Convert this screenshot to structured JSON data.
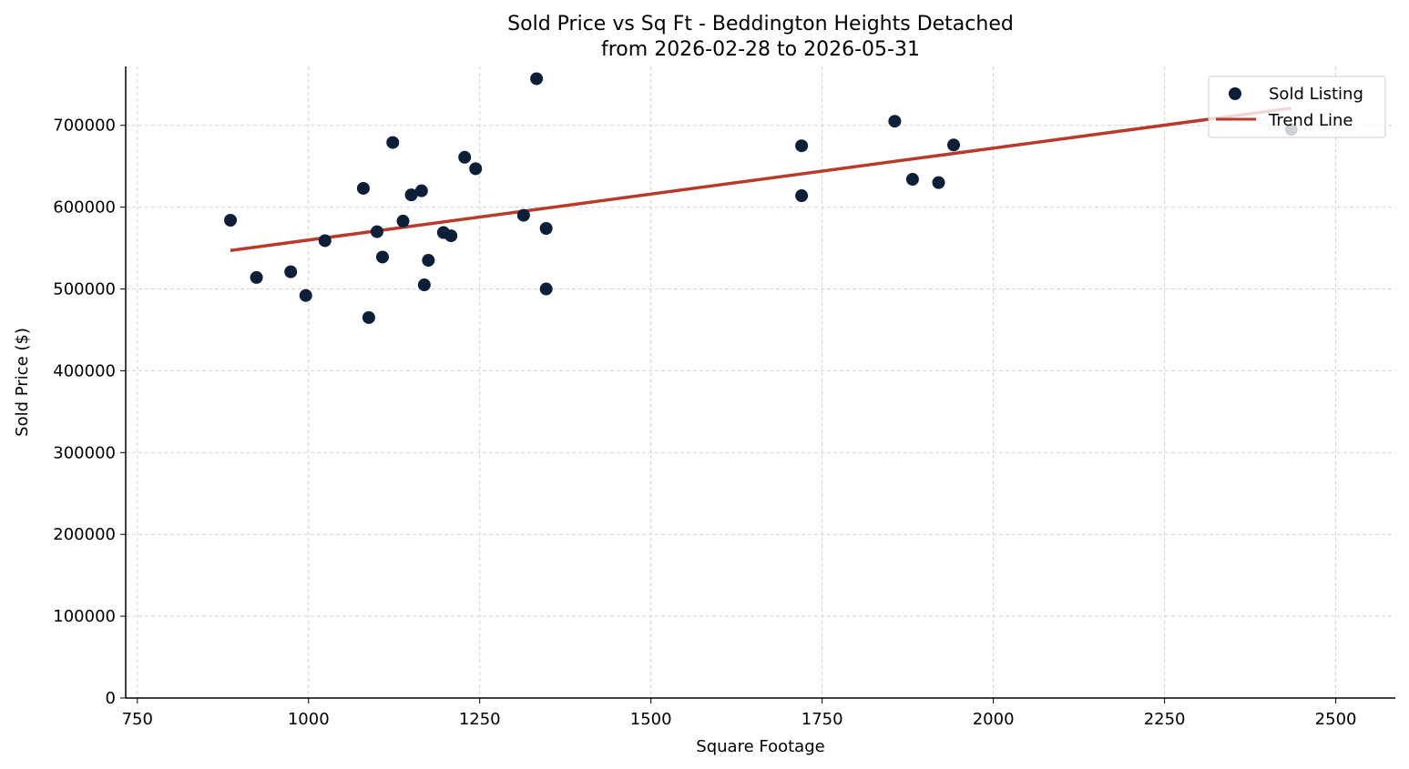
{
  "chart_data": {
    "type": "scatter",
    "title_lines": [
      "Sold Price vs Sq Ft - Beddington Heights Detached",
      "from 2026-02-28 to 2026-05-31"
    ],
    "xlabel": "Square Footage",
    "ylabel": "Sold Price ($)",
    "xlim": [
      733,
      2587
    ],
    "ylim": [
      0,
      772000
    ],
    "xticks": [
      750,
      1000,
      1250,
      1500,
      1750,
      2000,
      2250,
      2500
    ],
    "yticks": [
      0,
      100000,
      200000,
      300000,
      400000,
      500000,
      600000,
      700000
    ],
    "grid": true,
    "legend_position": "top-right",
    "series": [
      {
        "name": "Sold Listing",
        "kind": "scatter",
        "color": "#0b1f38",
        "points": [
          {
            "x": 886,
            "y": 584000
          },
          {
            "x": 924,
            "y": 514000
          },
          {
            "x": 974,
            "y": 521000
          },
          {
            "x": 996,
            "y": 492000
          },
          {
            "x": 1024,
            "y": 559000
          },
          {
            "x": 1080,
            "y": 623000
          },
          {
            "x": 1088,
            "y": 465000
          },
          {
            "x": 1100,
            "y": 570000
          },
          {
            "x": 1108,
            "y": 539000
          },
          {
            "x": 1123,
            "y": 679000
          },
          {
            "x": 1138,
            "y": 583000
          },
          {
            "x": 1150,
            "y": 615000
          },
          {
            "x": 1165,
            "y": 620000
          },
          {
            "x": 1169,
            "y": 505000
          },
          {
            "x": 1175,
            "y": 535000
          },
          {
            "x": 1197,
            "y": 569000
          },
          {
            "x": 1208,
            "y": 565000
          },
          {
            "x": 1228,
            "y": 661000
          },
          {
            "x": 1244,
            "y": 647000
          },
          {
            "x": 1314,
            "y": 590000
          },
          {
            "x": 1333,
            "y": 757000
          },
          {
            "x": 1347,
            "y": 574000
          },
          {
            "x": 1347,
            "y": 500000
          },
          {
            "x": 1720,
            "y": 675000
          },
          {
            "x": 1720,
            "y": 614000
          },
          {
            "x": 1856,
            "y": 705000
          },
          {
            "x": 1882,
            "y": 634000
          },
          {
            "x": 1920,
            "y": 630000
          },
          {
            "x": 1942,
            "y": 676000
          },
          {
            "x": 2435,
            "y": 695000
          }
        ]
      },
      {
        "name": "Trend Line",
        "kind": "line",
        "color": "#b83a2b",
        "points": [
          {
            "x": 886,
            "y": 547000
          },
          {
            "x": 2435,
            "y": 721000
          }
        ]
      }
    ]
  }
}
